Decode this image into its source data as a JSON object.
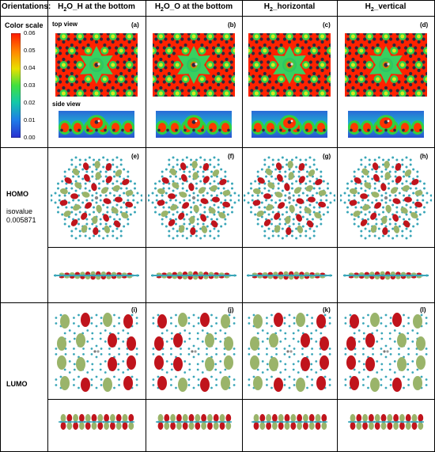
{
  "header": {
    "corner": "Orientations:",
    "columns": [
      {
        "main": "H",
        "sub": "2",
        "rest": "O_H at the bottom"
      },
      {
        "main": "H",
        "sub": "2",
        "rest": "O_O at the bottom"
      },
      {
        "main": "H",
        "sub": "2",
        "rest": "_horizontal"
      },
      {
        "main": "H",
        "sub": "2",
        "rest": "_vertical"
      }
    ]
  },
  "colorscale": {
    "title": "Color scale",
    "ticks": [
      "0.06",
      "0.05",
      "0.04",
      "0.03",
      "0.02",
      "0.01",
      "0.00"
    ],
    "colors": [
      "#ff2a00",
      "#ff8a00",
      "#e8e000",
      "#3ee04a",
      "#16c8a0",
      "#1f7de8",
      "#2a3ad8"
    ]
  },
  "density": {
    "top_view": "top view",
    "side_view": "side view",
    "tags": [
      "(a)",
      "(b)",
      "(c)",
      "(d)"
    ]
  },
  "homo": {
    "label": "HOMO",
    "isovalue_label": "isovalue",
    "isovalue": "0.005871",
    "tags": [
      "(e)",
      "(f)",
      "(g)",
      "(h)"
    ]
  },
  "lumo": {
    "label": "LUMO",
    "tags": [
      "(i)",
      "(j)",
      "(k)",
      "(l)"
    ]
  },
  "colors": {
    "orbital_red": "#c0141c",
    "orbital_green": "#9ab46a",
    "atom_cyan": "#3aa6b8",
    "atom_dark": "#2a2a40",
    "density_red": "#ff2200",
    "density_green": "#2ed04a"
  }
}
